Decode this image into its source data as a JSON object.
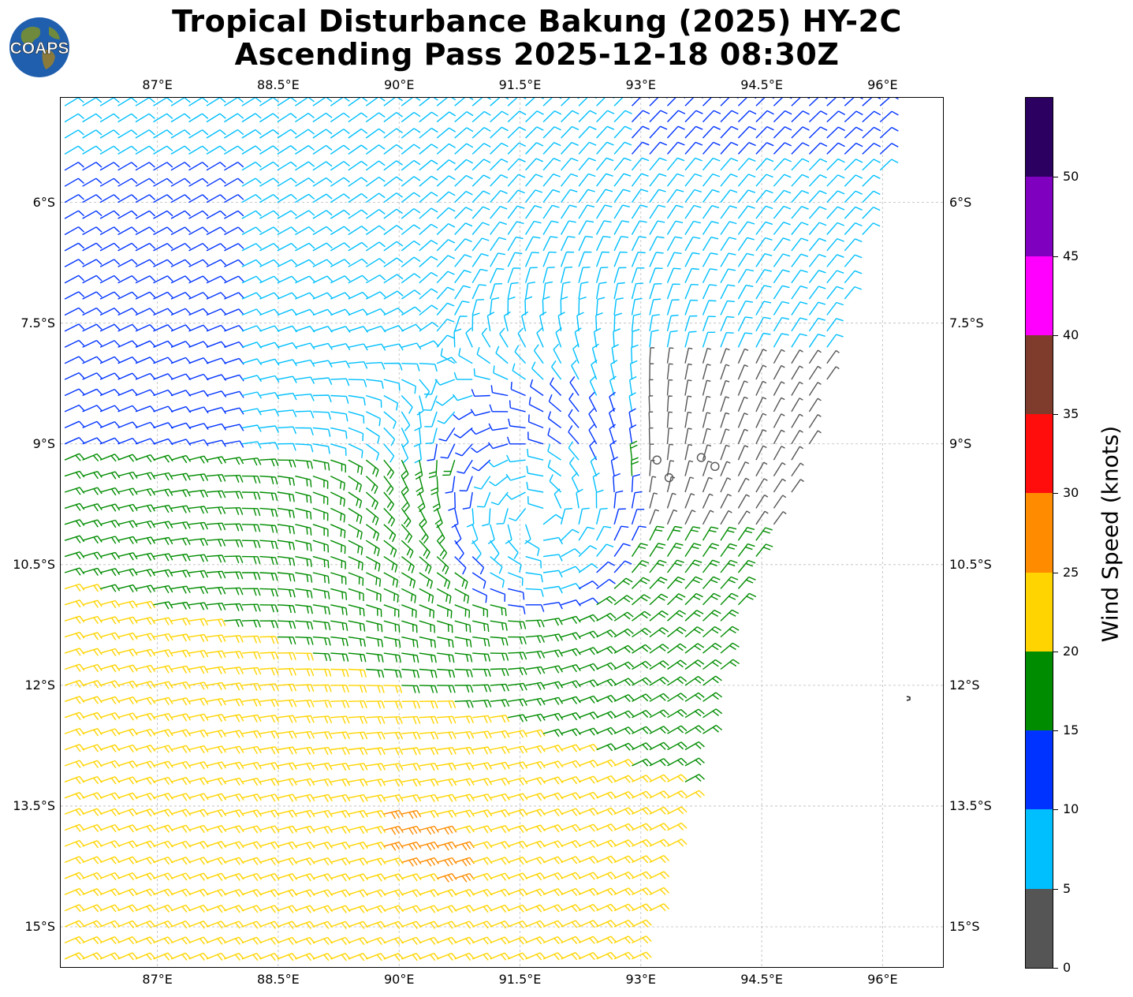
{
  "title": {
    "line1": "Tropical Disturbance Bakung (2025) HY-2C",
    "line2": "Ascending Pass 2025-12-18 08:30Z"
  },
  "logo": {
    "text": "COAPS"
  },
  "map": {
    "lon_range": [
      85.8,
      96.75
    ],
    "lat_range": [
      -15.5,
      -4.7
    ],
    "lon_ticks": [
      "87°E",
      "88.5°E",
      "90°E",
      "91.5°E",
      "93°E",
      "94.5°E",
      "96°E"
    ],
    "lon_tick_values": [
      87,
      88.5,
      90,
      91.5,
      93,
      94.5,
      96
    ],
    "lat_ticks": [
      "6°S",
      "7.5°S",
      "9°S",
      "10.5°S",
      "12°S",
      "13.5°S",
      "15°S"
    ],
    "lat_tick_values": [
      -6,
      -7.5,
      -9,
      -10.5,
      -12,
      -13.5,
      -15
    ],
    "gridlines": true,
    "swath_east_edge": [
      [
        96.2,
        -4.7
      ],
      [
        95.0,
        -9.5
      ],
      [
        94.4,
        -10.5
      ],
      [
        92.95,
        -15.5
      ]
    ],
    "storm_center": {
      "lon": 91.75,
      "lat": -9.95
    },
    "calm_circles": [
      {
        "lon": 93.35,
        "lat": -9.42
      },
      {
        "lon": 93.75,
        "lat": -9.17
      },
      {
        "lon": 93.2,
        "lat": -9.2
      },
      {
        "lon": 93.92,
        "lat": -9.28
      }
    ]
  },
  "colorbar": {
    "title": "Wind Speed (knots)",
    "ticks": [
      "0",
      "5",
      "10",
      "15",
      "20",
      "25",
      "30",
      "35",
      "40",
      "45",
      "50"
    ],
    "bins": [
      {
        "from": 0,
        "to": 5,
        "color": "#555555"
      },
      {
        "from": 5,
        "to": 10,
        "color": "#00bfff"
      },
      {
        "from": 10,
        "to": 15,
        "color": "#0033ff"
      },
      {
        "from": 15,
        "to": 20,
        "color": "#008c00"
      },
      {
        "from": 20,
        "to": 25,
        "color": "#ffd400"
      },
      {
        "from": 25,
        "to": 30,
        "color": "#ff8c00"
      },
      {
        "from": 30,
        "to": 35,
        "color": "#ff0d0d"
      },
      {
        "from": 35,
        "to": 40,
        "color": "#7f3b2b"
      },
      {
        "from": 40,
        "to": 45,
        "color": "#ff00ff"
      },
      {
        "from": 45,
        "to": 50,
        "color": "#8000c0"
      },
      {
        "from": 50,
        "to": 55,
        "color": "#2b0060"
      }
    ]
  }
}
